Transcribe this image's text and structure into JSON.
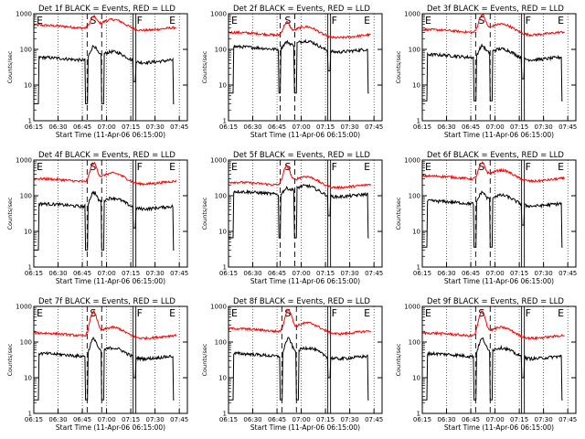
{
  "chart_data": {
    "type": "line",
    "layout": "3x3 grid",
    "scale": {
      "y": "log",
      "ylim": [
        1,
        1000
      ],
      "yticks": [
        1,
        10,
        100,
        1000
      ]
    },
    "x_ticks": [
      "06:15",
      "06:30",
      "06:45",
      "07:00",
      "07:15",
      "07:30",
      "07:45"
    ],
    "xlabel": "Start Time (11-Apr-06 06:15:00)",
    "ylabel": "Counts/sec",
    "legend_note": "BLACK = Events, RED = LLD",
    "series_colors": {
      "events": "#000000",
      "lld": "#ff0000"
    },
    "markers": {
      "E_left": {
        "label": "E",
        "time": "06:15"
      },
      "S": {
        "label": "S",
        "time": "06:52"
      },
      "F": {
        "label": "F",
        "time": "07:17"
      },
      "E_right": {
        "label": "E",
        "time": "07:41"
      }
    },
    "panels": [
      {
        "title": "Det 1f BLACK = Events, RED = LLD",
        "events_base": 50,
        "lld_base": 400,
        "peak_time": "06:52",
        "lld_peak": 800,
        "events_peak": 120
      },
      {
        "title": "Det 2f BLACK = Events, RED = LLD",
        "events_base": 100,
        "lld_base": 250,
        "peak_time": "06:51",
        "lld_peak": 550,
        "events_peak": 150
      },
      {
        "title": "Det 3f BLACK = Events, RED = LLD",
        "events_base": 60,
        "lld_base": 300,
        "peak_time": "06:52",
        "lld_peak": 900,
        "events_peak": 120
      },
      {
        "title": "Det 4f BLACK = Events, RED = LLD",
        "events_base": 50,
        "lld_base": 250,
        "peak_time": "06:52",
        "lld_peak": 800,
        "events_peak": 120
      },
      {
        "title": "Det 5f BLACK = Events, RED = LLD",
        "events_base": 110,
        "lld_base": 200,
        "peak_time": "06:51",
        "lld_peak": 650,
        "events_peak": 150
      },
      {
        "title": "Det 6f BLACK = Events, RED = LLD",
        "events_base": 60,
        "lld_base": 300,
        "peak_time": "06:52",
        "lld_peak": 800,
        "events_peak": 120
      },
      {
        "title": "Det 7f BLACK = Events, RED = LLD",
        "events_base": 40,
        "lld_base": 150,
        "peak_time": "06:52",
        "lld_peak": 700,
        "events_peak": 120
      },
      {
        "title": "Det 8f BLACK = Events, RED = LLD",
        "events_base": 40,
        "lld_base": 200,
        "peak_time": "06:52",
        "lld_peak": 800,
        "events_peak": 120
      },
      {
        "title": "Det 9f BLACK = Events, RED = LLD",
        "events_base": 40,
        "lld_base": 150,
        "peak_time": "06:52",
        "lld_peak": 700,
        "events_peak": 120
      }
    ]
  }
}
